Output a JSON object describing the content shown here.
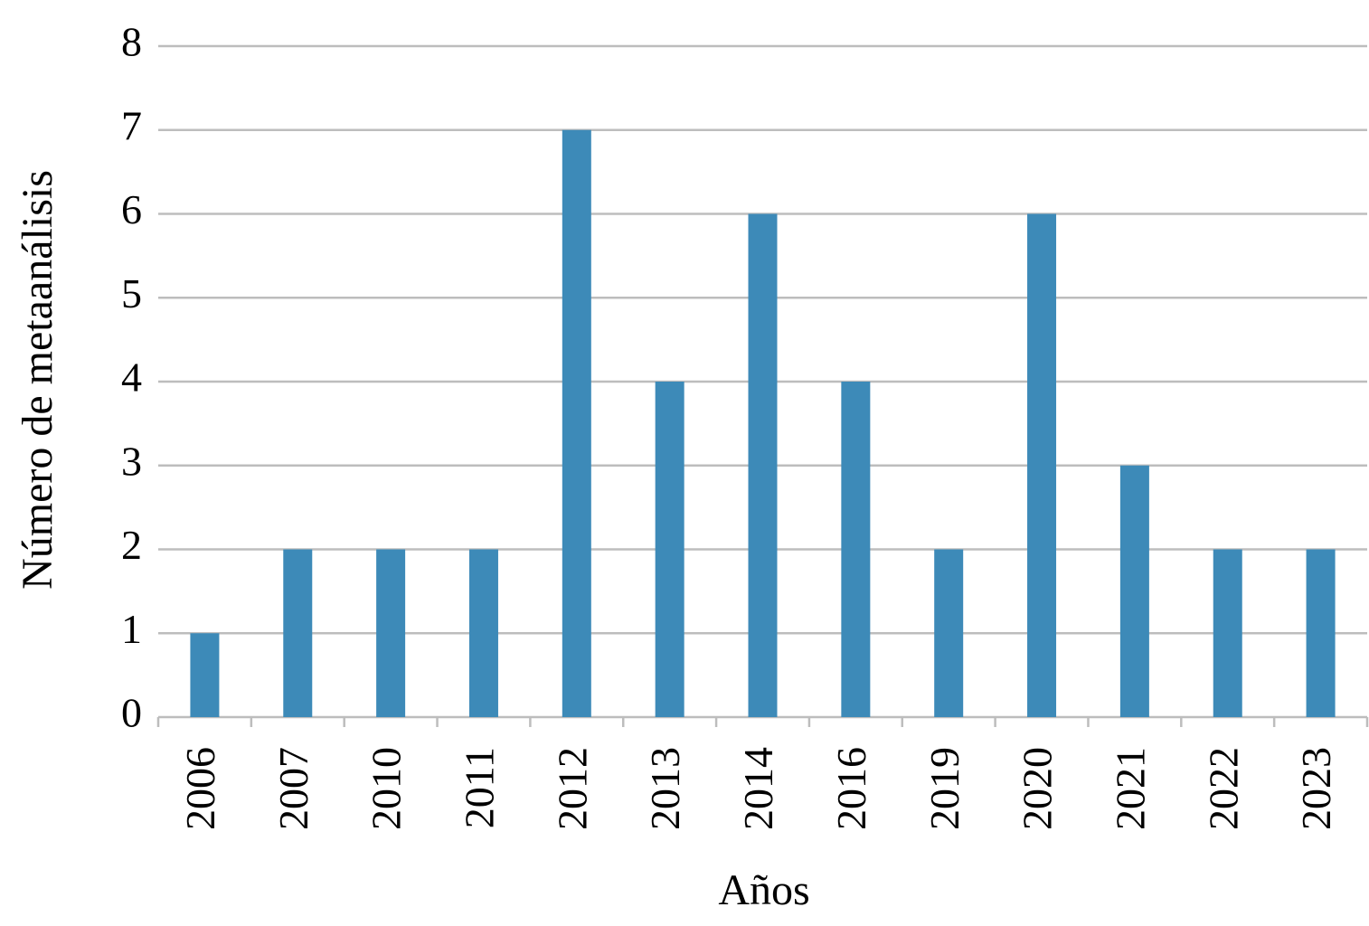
{
  "chart_data": {
    "type": "bar",
    "x_label": "Años",
    "y_label": "Número de metaanálisis",
    "categories": [
      "2006",
      "2007",
      "2010",
      "2011",
      "2012",
      "2013",
      "2014",
      "2016",
      "2019",
      "2020",
      "2021",
      "2022",
      "2023"
    ],
    "values": [
      1,
      2,
      2,
      2,
      7,
      4,
      6,
      4,
      2,
      6,
      3,
      2,
      2
    ],
    "color": "#3d8ab8",
    "ylim": [
      0,
      8
    ],
    "yticks": [
      0,
      1,
      2,
      3,
      4,
      5,
      6,
      7,
      8
    ],
    "grid": true
  }
}
